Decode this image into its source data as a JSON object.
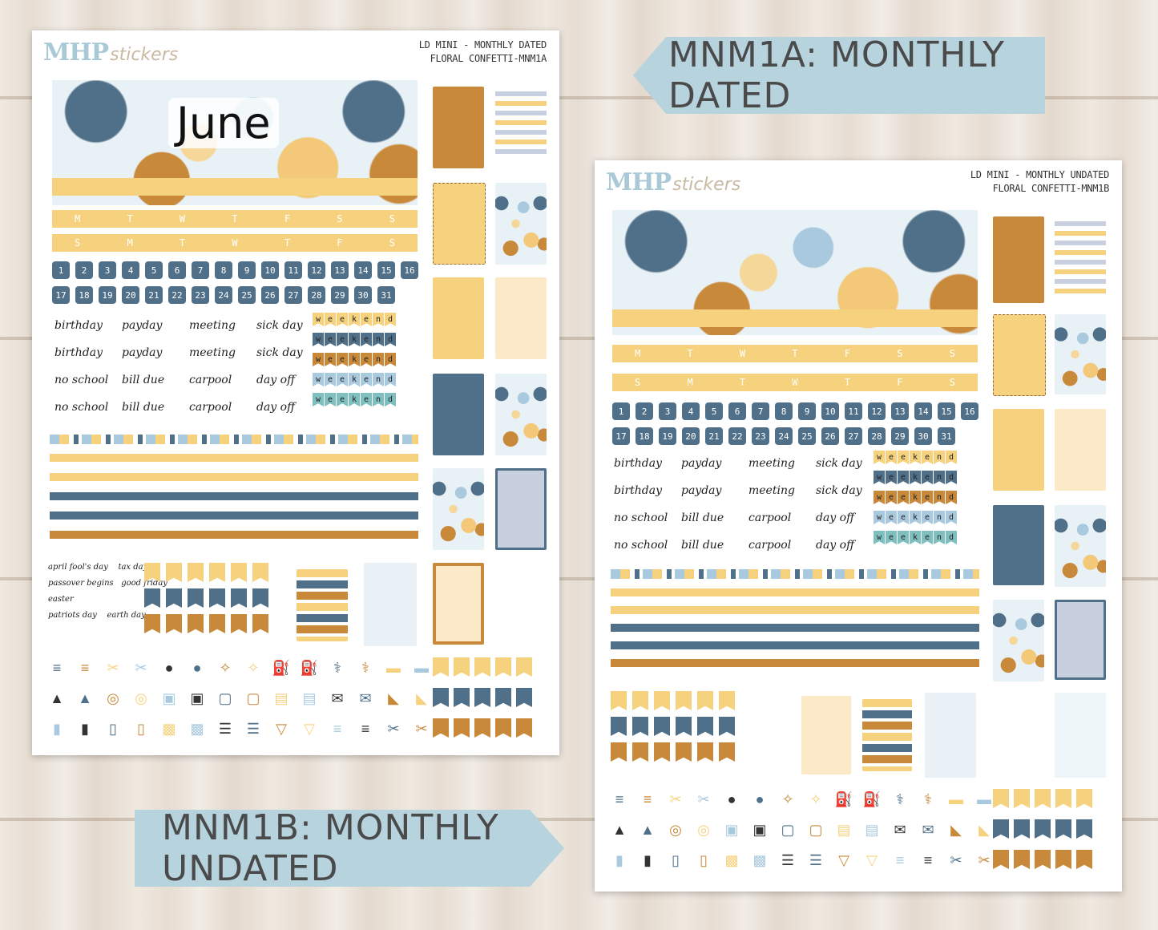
{
  "labels": {
    "dated": "MNM1A: MONTHLY DATED",
    "undated": "MNM1B: MONTHLY UNDATED"
  },
  "sheet_dated": {
    "logo_main": "MHP",
    "logo_script": "stickers",
    "title_line1": "LD MINI - MONTHLY DATED",
    "title_line2": "FLORAL CONFETTI-MNM1A",
    "month": "June"
  },
  "sheet_undated": {
    "logo_main": "MHP",
    "logo_script": "stickers",
    "title_line1": "LD MINI - MONTHLY UNDATED",
    "title_line2": "FLORAL CONFETTI-MNM1B"
  },
  "weekday_rows": [
    [
      "M",
      "T",
      "W",
      "T",
      "F",
      "S",
      "S"
    ],
    [
      "S",
      "M",
      "T",
      "W",
      "T",
      "F",
      "S"
    ]
  ],
  "day_numbers": [
    "1",
    "2",
    "3",
    "4",
    "5",
    "6",
    "7",
    "8",
    "9",
    "10",
    "11",
    "12",
    "13",
    "14",
    "15",
    "16",
    "17",
    "18",
    "19",
    "20",
    "21",
    "22",
    "23",
    "24",
    "25",
    "26",
    "27",
    "28",
    "29",
    "30",
    "31"
  ],
  "word_stickers": [
    "birthday",
    "payday",
    "meeting",
    "sick day",
    "birthday",
    "payday",
    "meeting",
    "sick day",
    "no school",
    "bill due",
    "carpool",
    "day off",
    "no school",
    "bill due",
    "carpool",
    "day off"
  ],
  "weekend_word": "weekend",
  "holidays": [
    "april fool's day",
    "tax day",
    "passover begins",
    "good friday",
    "easter",
    "patriots day",
    "earth day"
  ],
  "colors": {
    "yellow": "#f6d27f",
    "blue": "#507089",
    "orange": "#c9893a",
    "lightblue": "#a9c9df",
    "label_bg": "#b7d3de"
  },
  "icons": [
    "comb-icon",
    "scissors-icon",
    "piggy-bank-icon",
    "tooth-icon",
    "gas-pump-icon",
    "stethoscope-icon",
    "dumbbell-icon",
    "cake-icon",
    "washer-icon",
    "pills-icon",
    "scale-icon",
    "luggage-icon",
    "envelope-icon",
    "sneaker-icon",
    "trash-icon",
    "book-icon",
    "gift-icon",
    "receipt-icon",
    "cart-icon"
  ]
}
